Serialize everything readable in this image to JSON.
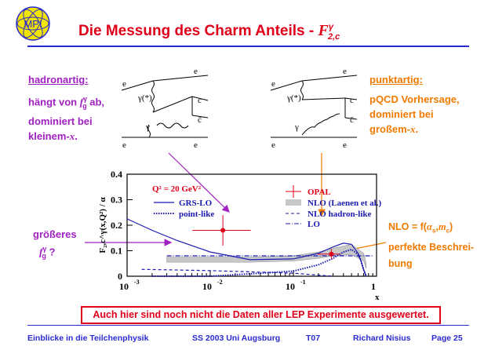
{
  "header": {
    "title": "Die Messung des Charm Anteils -",
    "title_symbol": "F",
    "title_sup": "γ",
    "title_sub": "2,c",
    "logo_text": "MPI"
  },
  "left_panel": {
    "heading": "hadronartig:",
    "line1": "hängt von",
    "line1_sym": "f",
    "line1_sup": "γ",
    "line1_sub": "g",
    "line1_end": "ab,",
    "line2": "dominiert bei",
    "line3": "kleinem-",
    "line3_sym": "x",
    "line3_end": "."
  },
  "right_panel": {
    "heading": "punktartig:",
    "line1": "pQCD Vorhersage,",
    "line2": "dominiert bei",
    "line3": "großem-",
    "line3_sym": "x",
    "line3_end": "."
  },
  "left_question": {
    "line1": "größeres",
    "sym": "f",
    "sup": "γ",
    "sub": "g",
    "end": "?"
  },
  "nlo_note": {
    "line1": "NLO = f(",
    "alpha": "α",
    "alpha_sub": "s",
    "comma": ",",
    "m": "m",
    "m_sub": "c",
    "close": ")",
    "line2": "perfekte Beschrei-",
    "line3": "bung"
  },
  "diagram_left": {
    "labels": [
      "e",
      "e",
      "e",
      "e",
      "γ(*)",
      "γ",
      "c",
      "c̄"
    ]
  },
  "diagram_right": {
    "labels": [
      "e",
      "e",
      "e",
      "e",
      "γ(*)",
      "γ",
      "c",
      "c̄"
    ]
  },
  "chart_data": {
    "type": "line",
    "ylabel": "F₂,c^γ(x,Q²) / α",
    "xlabel": "x",
    "x_scale": "log",
    "xlim": [
      0.001,
      1
    ],
    "ylim": [
      0,
      0.4
    ],
    "yticks": [
      "0",
      "0.1",
      "0.2",
      "0.3",
      "0.4"
    ],
    "xticks": [
      "10",
      "10",
      "10",
      "1"
    ],
    "xtick_exps": [
      "-3",
      "-2",
      "-1",
      ""
    ],
    "annotation": "Q² = 20 GeV²",
    "legend_left": [
      "GRS-LO",
      "point-like"
    ],
    "legend_right": [
      "OPAL",
      "NLO (Laenen et al.)",
      "NLO hadron-like",
      "LO"
    ],
    "colors": {
      "opal": "#e0001a",
      "theory": "#1a1ab0",
      "band": "#888888"
    },
    "series": [
      {
        "name": "OPAL",
        "kind": "points",
        "x": [
          0.0142,
          0.286
        ],
        "y": [
          0.18,
          0.087
        ],
        "yerr": [
          0.06,
          0.02
        ],
        "xlo": [
          0.0061,
          0.196
        ],
        "xhi": [
          0.0306,
          0.362
        ]
      },
      {
        "name": "GRS-LO",
        "kind": "line",
        "x": [
          0.001,
          0.002,
          0.004,
          0.01,
          0.03,
          0.1,
          0.2,
          0.3,
          0.4,
          0.5,
          0.6,
          0.65,
          0.7,
          0.75
        ],
        "y": [
          0.225,
          0.18,
          0.14,
          0.095,
          0.065,
          0.068,
          0.09,
          0.115,
          0.13,
          0.125,
          0.09,
          0.06,
          0.025,
          0.0
        ]
      },
      {
        "name": "point-like",
        "kind": "line",
        "x": [
          0.002,
          0.01,
          0.1,
          0.2,
          0.3,
          0.4,
          0.5,
          0.6,
          0.65,
          0.7,
          0.75
        ],
        "y": [
          0.0,
          0.0,
          0.02,
          0.045,
          0.07,
          0.095,
          0.105,
          0.085,
          0.06,
          0.025,
          0.0
        ]
      },
      {
        "name": "NLO hadron-like",
        "kind": "line",
        "x": [
          0.0015,
          0.01,
          0.1,
          0.3
        ],
        "y": [
          0.027,
          0.022,
          0.012,
          0.0
        ]
      },
      {
        "name": "LO",
        "kind": "line",
        "x": [
          0.003,
          0.9
        ],
        "y": [
          0.08,
          0.08
        ]
      },
      {
        "name": "NLO (Laenen et al.)",
        "kind": "band",
        "x": [
          0.003,
          0.03,
          0.1,
          0.2,
          0.3,
          0.5,
          0.7,
          0.75
        ],
        "ylo": [
          0.055,
          0.055,
          0.06,
          0.07,
          0.08,
          0.085,
          0.06,
          0.03
        ],
        "yhi": [
          0.075,
          0.075,
          0.08,
          0.095,
          0.11,
          0.125,
          0.09,
          0.05
        ]
      }
    ]
  },
  "bottom_note": "Auch hier sind noch nicht die Daten aller LEP Experimente ausgewertet.",
  "footer": {
    "course": "Einblicke in die Teilchenphysik",
    "term": "SS 2003 Uni Augsburg",
    "code": "T07",
    "author": "Richard Nisius",
    "page": "Page 25"
  }
}
